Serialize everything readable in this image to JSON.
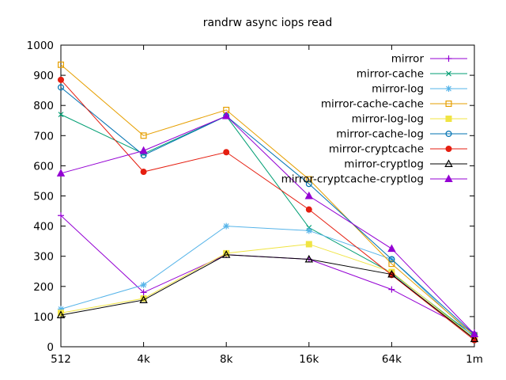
{
  "window": {
    "title": "randrw async iops read"
  },
  "chart_data": {
    "type": "line",
    "title": "randrw async iops read",
    "xlabel": "",
    "ylabel": "",
    "categories": [
      "512",
      "4k",
      "8k",
      "16k",
      "64k",
      "1m"
    ],
    "y_ticks": [
      0,
      100,
      200,
      300,
      400,
      500,
      600,
      700,
      800,
      900,
      1000
    ],
    "ylim": [
      0,
      1000
    ],
    "grid": false,
    "legend_position": "top-right-inside",
    "border_color": "#000000",
    "background_color": "#ffffff",
    "series": [
      {
        "name": "mirror",
        "color": "#9400d3",
        "marker": "plus",
        "values": [
          435,
          180,
          305,
          290,
          190,
          47
        ]
      },
      {
        "name": "mirror-cache",
        "color": "#009e73",
        "marker": "x",
        "values": [
          770,
          640,
          765,
          395,
          245,
          34
        ]
      },
      {
        "name": "mirror-log",
        "color": "#56b4e9",
        "marker": "asterisk",
        "values": [
          125,
          205,
          400,
          385,
          290,
          30
        ]
      },
      {
        "name": "mirror-cache-cache",
        "color": "#e69f00",
        "marker": "square-open",
        "values": [
          935,
          700,
          785,
          555,
          275,
          37
        ]
      },
      {
        "name": "mirror-log-log",
        "color": "#f0e442",
        "marker": "square-filled",
        "values": [
          112,
          160,
          310,
          340,
          248,
          28
        ]
      },
      {
        "name": "mirror-cache-log",
        "color": "#0072b2",
        "marker": "circle-open",
        "values": [
          860,
          635,
          765,
          540,
          290,
          40
        ]
      },
      {
        "name": "mirror-cryptcache",
        "color": "#e51e10",
        "marker": "circle-filled",
        "values": [
          885,
          580,
          645,
          455,
          238,
          22
        ]
      },
      {
        "name": "mirror-cryptlog",
        "color": "#000000",
        "marker": "triangle-open",
        "values": [
          105,
          155,
          305,
          290,
          240,
          26
        ]
      },
      {
        "name": "mirror-cryptcache-cryptlog",
        "color": "#9400d3",
        "marker": "triangle-filled",
        "values": [
          575,
          650,
          765,
          500,
          325,
          42
        ]
      }
    ]
  }
}
